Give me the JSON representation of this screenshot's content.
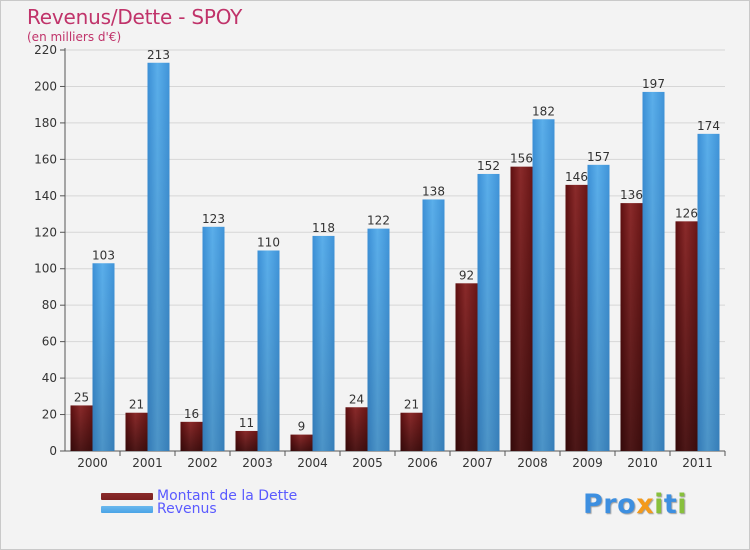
{
  "title": "Revenus/Dette - SPOY",
  "subtitle": "(en milliers d'€)",
  "logo": {
    "text": "Proxiti",
    "colors": [
      "#3d8fe0",
      "#f39a1c",
      "#88c03c"
    ]
  },
  "chart_data": {
    "type": "bar",
    "categories": [
      "2000",
      "2001",
      "2002",
      "2003",
      "2004",
      "2005",
      "2006",
      "2007",
      "2008",
      "2009",
      "2010",
      "2011"
    ],
    "series": [
      {
        "name": "Montant de la Dette",
        "color": "#7a1f1f",
        "values": [
          25,
          21,
          16,
          11,
          9,
          24,
          21,
          92,
          156,
          146,
          136,
          126
        ]
      },
      {
        "name": "Revenus",
        "color": "#4aa3e6",
        "values": [
          103,
          213,
          123,
          110,
          118,
          122,
          138,
          152,
          182,
          157,
          197,
          174
        ]
      }
    ],
    "ylim": [
      0,
      220
    ],
    "yticks": [
      0,
      20,
      40,
      60,
      80,
      100,
      120,
      140,
      160,
      180,
      200,
      220
    ],
    "grid": true,
    "legend": "bottom-left"
  }
}
